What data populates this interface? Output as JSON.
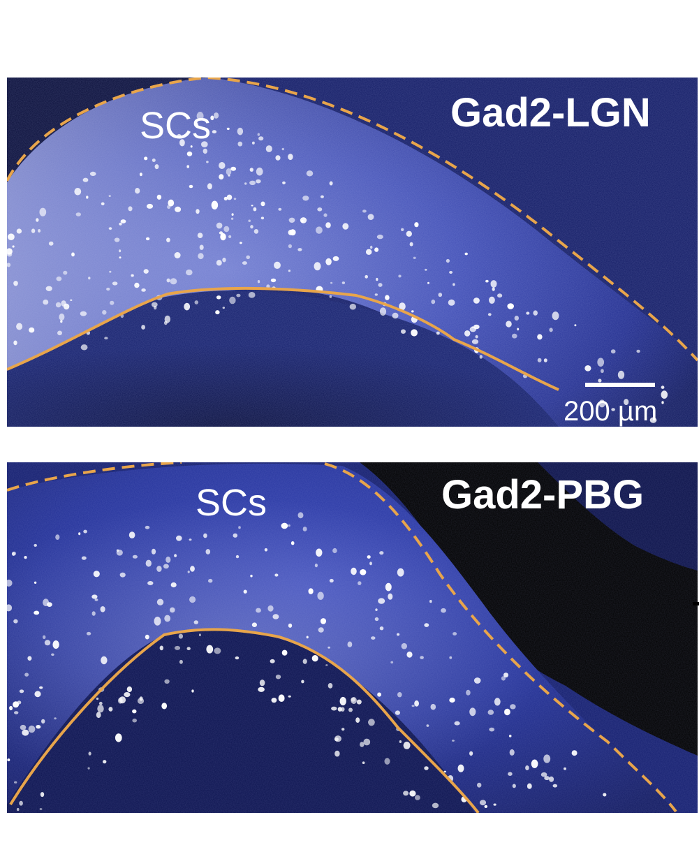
{
  "panels": [
    {
      "title": "Gad2-LGN",
      "region_label": "SCs",
      "scale_bar_label": "200 µm"
    },
    {
      "title": "Gad2-PBG",
      "region_label": "SCs"
    }
  ],
  "colors": {
    "outline": "#e8a54b",
    "tissue_blue": "#2a3bbf",
    "background_dark": "#05081a",
    "cell_white": "#ffffff"
  }
}
